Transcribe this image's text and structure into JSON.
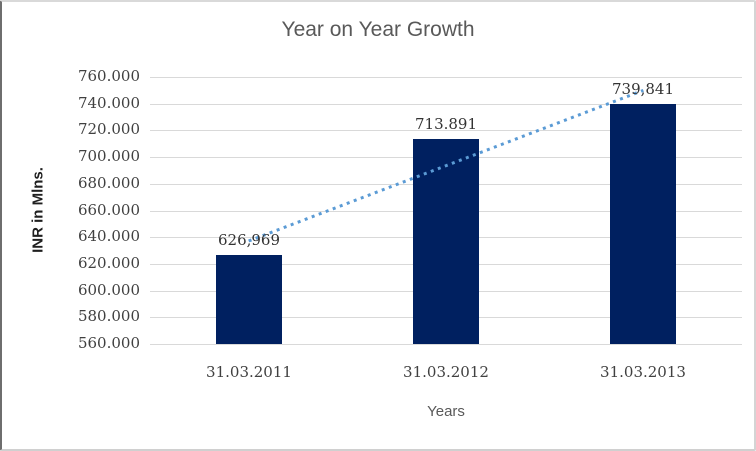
{
  "chart": {
    "title": "Year on Year Growth",
    "x_axis_title": "Years",
    "y_axis_title": "INR in Mlns."
  },
  "chart_data": {
    "type": "bar",
    "title": "Year on Year Growth",
    "xlabel": "Years",
    "ylabel": "INR in Mlns.",
    "categories": [
      "31.03.2011",
      "31.03.2012",
      "31.03.2013"
    ],
    "values": [
      626.969,
      713.891,
      739.841
    ],
    "data_labels": [
      "626,969",
      "713.891",
      "739,841"
    ],
    "y_ticks": [
      "760.000",
      "740.000",
      "720.000",
      "700.000",
      "680.000",
      "660.000",
      "640.000",
      "620.000",
      "600.000",
      "580.000",
      "560.000"
    ],
    "ylim": [
      560,
      760
    ],
    "y_tick_step": 20,
    "grid": true,
    "legend": false,
    "bar_color": "#002060",
    "gridline_color": "#d9d9d9",
    "trendline": {
      "style": "dotted",
      "color": "#5B9BD5",
      "fit": "linear",
      "y_at_first_category": 637.131,
      "y_at_last_category": 750.003
    }
  }
}
